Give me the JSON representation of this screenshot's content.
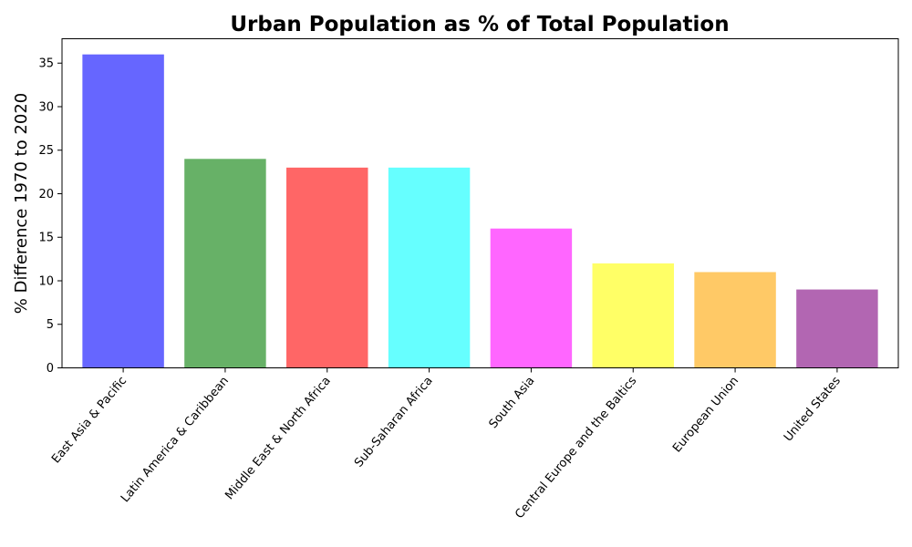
{
  "chart_data": {
    "type": "bar",
    "title": "Urban Population as % of Total Population",
    "xlabel": "",
    "ylabel": "% Difference 1970 to 2020",
    "categories": [
      "East Asia & Pacific",
      "Latin America & Caribbean",
      "Middle East & North Africa",
      "Sub-Saharan Africa",
      "South Asia",
      "Central Europe and the Baltics",
      "European Union",
      "United States"
    ],
    "values": [
      36,
      24,
      23,
      23,
      16,
      12,
      11,
      9
    ],
    "colors": [
      "#6666ff",
      "#67b167",
      "#ff6666",
      "#66ffff",
      "#ff66ff",
      "#ffff66",
      "#ffc966",
      "#b266b2"
    ],
    "ylim": [
      0,
      37.8
    ],
    "yticks": [
      0,
      5,
      10,
      15,
      20,
      25,
      30,
      35
    ],
    "grid": false,
    "legend": "none"
  }
}
